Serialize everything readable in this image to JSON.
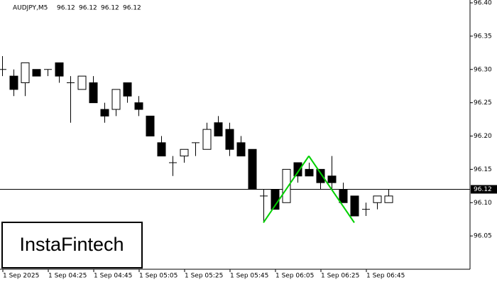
{
  "chart_data": {
    "type": "candlestick",
    "title": "AUDJPY,M5",
    "header_values": [
      96.12,
      96.12,
      96.12,
      96.12
    ],
    "categories": [
      "1 Sep 2025",
      null,
      null,
      null,
      "1 Sep 04:25",
      null,
      null,
      null,
      "1 Sep 04:45",
      null,
      null,
      null,
      "1 Sep 05:05",
      null,
      null,
      null,
      "1 Sep 05:25",
      null,
      null,
      null,
      "1 Sep 05:45",
      null,
      null,
      null,
      "1 Sep 06:05",
      null,
      null,
      null,
      "1 Sep 06:25",
      null,
      null,
      null,
      "1 Sep 06:45",
      null,
      null
    ],
    "open": [
      96.3,
      96.29,
      96.28,
      96.3,
      96.3,
      96.31,
      96.28,
      96.27,
      96.28,
      96.24,
      96.24,
      96.28,
      96.25,
      96.23,
      96.19,
      96.16,
      96.17,
      96.19,
      96.18,
      96.22,
      96.21,
      96.19,
      96.18,
      96.11,
      96.12,
      96.1,
      96.16,
      96.15,
      96.15,
      96.14,
      96.12,
      96.11,
      96.09,
      96.1,
      96.1
    ],
    "high": [
      96.32,
      96.3,
      96.31,
      96.3,
      96.3,
      96.31,
      96.29,
      96.29,
      96.29,
      96.25,
      96.27,
      96.28,
      96.26,
      96.23,
      96.2,
      96.17,
      96.18,
      96.19,
      96.22,
      96.23,
      96.22,
      96.2,
      96.18,
      96.12,
      96.12,
      96.15,
      96.16,
      96.16,
      96.15,
      96.17,
      96.13,
      96.11,
      96.1,
      96.11,
      96.12
    ],
    "low": [
      96.29,
      96.26,
      96.26,
      96.29,
      96.29,
      96.28,
      96.22,
      96.27,
      96.25,
      96.22,
      96.23,
      96.25,
      96.23,
      96.2,
      96.17,
      96.14,
      96.16,
      96.17,
      96.18,
      96.2,
      96.17,
      96.17,
      96.12,
      96.07,
      96.09,
      96.1,
      96.13,
      96.14,
      96.12,
      96.12,
      96.1,
      96.08,
      96.08,
      96.09,
      96.1
    ],
    "close": [
      96.3,
      96.27,
      96.31,
      96.29,
      96.3,
      96.29,
      96.28,
      96.29,
      96.25,
      96.23,
      96.27,
      96.26,
      96.24,
      96.2,
      96.17,
      96.16,
      96.18,
      96.19,
      96.21,
      96.2,
      96.18,
      96.17,
      96.12,
      96.11,
      96.09,
      96.15,
      96.14,
      96.14,
      96.13,
      96.13,
      96.1,
      96.08,
      96.09,
      96.11,
      96.11
    ],
    "up_color": "#ffffff",
    "down_color": "#000000",
    "ylim": [
      96.0,
      96.4
    ],
    "yticks": [
      96.05,
      {
        "value": 96.1,
        "label": "96.10"
      },
      96.15,
      {
        "value": 96.2,
        "label": "96.20"
      },
      96.25,
      {
        "value": 96.3,
        "label": "96.30"
      },
      96.35,
      {
        "value": 96.4,
        "label": "96.40"
      }
    ],
    "last_price": 96.12,
    "pattern": {
      "color": "#00d000",
      "points": [
        {
          "index": 23,
          "value": 96.07
        },
        {
          "index": 27,
          "value": 96.17
        },
        {
          "index": 31,
          "value": 96.07
        }
      ]
    },
    "logo": "InstaFintech"
  }
}
